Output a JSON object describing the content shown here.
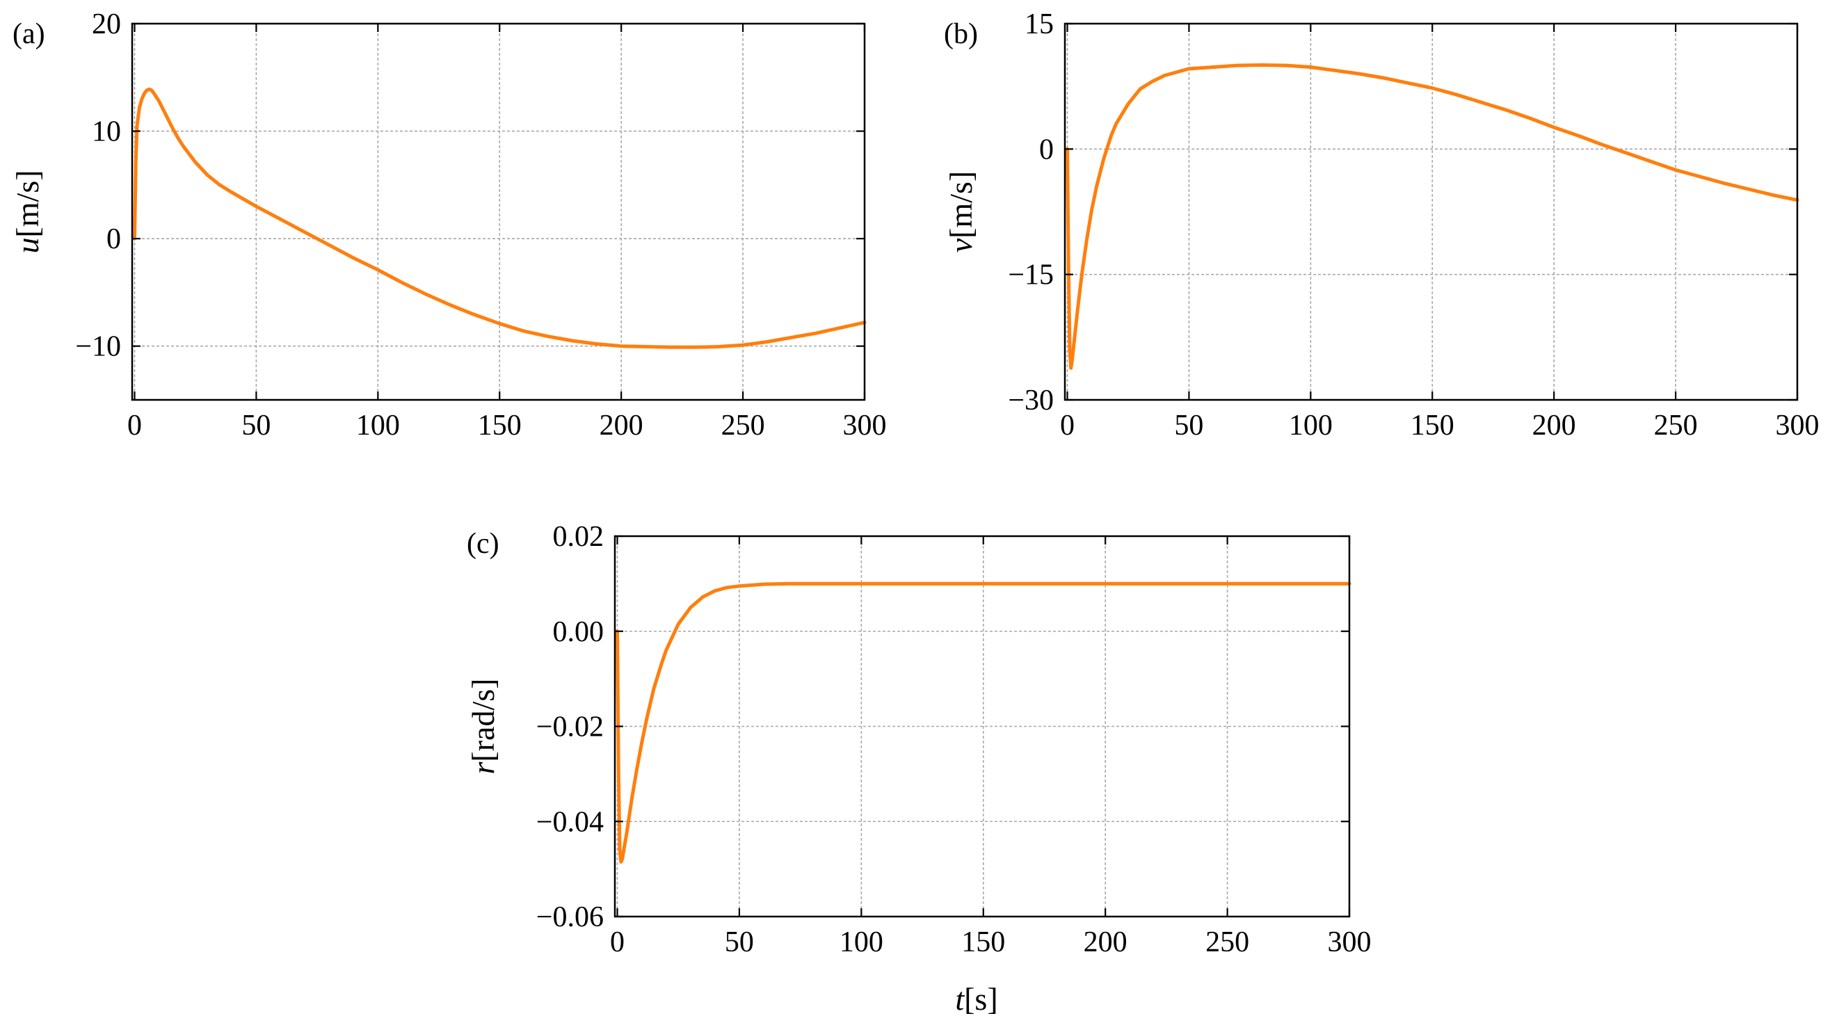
{
  "figure": {
    "xlabel_var": "t",
    "xlabel_unit": "[s]",
    "line_color": "#ff7f0e"
  },
  "chart_data": [
    {
      "type": "line",
      "panel_label": "(a)",
      "ylabel_var": "u",
      "ylabel_unit": "[m/s]",
      "xlim": [
        -1,
        300
      ],
      "ylim": [
        -15,
        20
      ],
      "xticks": [
        0,
        50,
        100,
        150,
        200,
        250,
        300
      ],
      "xtick_labels": [
        "0",
        "50",
        "100",
        "150",
        "200",
        "250",
        "300"
      ],
      "yticks": [
        -10,
        0,
        10,
        20
      ],
      "ytick_labels": [
        "−10",
        "0",
        "10",
        "20"
      ],
      "grid": true,
      "series": [
        {
          "x": [
            0,
            0.5,
            1,
            2,
            3,
            4,
            5,
            6,
            7,
            8,
            10,
            12,
            14,
            16,
            18,
            20,
            25,
            30,
            35,
            40,
            50,
            60,
            70,
            80,
            90,
            100,
            110,
            120,
            130,
            140,
            150,
            160,
            170,
            180,
            190,
            200,
            210,
            220,
            230,
            235,
            240,
            250,
            260,
            270,
            280,
            290,
            300
          ],
          "y": [
            0,
            7,
            10.5,
            12.2,
            13,
            13.5,
            13.8,
            13.9,
            13.8,
            13.5,
            12.8,
            11.9,
            11,
            10.1,
            9.3,
            8.6,
            7.1,
            5.9,
            5,
            4.3,
            3,
            1.8,
            0.6,
            -0.6,
            -1.8,
            -2.9,
            -4.1,
            -5.2,
            -6.2,
            -7.1,
            -7.9,
            -8.6,
            -9.1,
            -9.5,
            -9.8,
            -10,
            -10.05,
            -10.1,
            -10.1,
            -10.08,
            -10.05,
            -9.9,
            -9.6,
            -9.2,
            -8.8,
            -8.3,
            -7.8
          ]
        }
      ]
    },
    {
      "type": "line",
      "panel_label": "(b)",
      "ylabel_var": "v",
      "ylabel_unit": "[m/s]",
      "xlim": [
        -1,
        300
      ],
      "ylim": [
        -30,
        15
      ],
      "xticks": [
        0,
        50,
        100,
        150,
        200,
        250,
        300
      ],
      "xtick_labels": [
        "0",
        "50",
        "100",
        "150",
        "200",
        "250",
        "300"
      ],
      "yticks": [
        -30,
        -15,
        0,
        15
      ],
      "ytick_labels": [
        "−30",
        "−15",
        "0",
        "15"
      ],
      "grid": true,
      "series": [
        {
          "x": [
            0,
            0.5,
            1,
            1.5,
            2,
            3,
            4,
            5,
            6,
            8,
            10,
            12,
            15,
            18,
            20,
            25,
            30,
            35,
            40,
            50,
            60,
            70,
            80,
            90,
            100,
            110,
            120,
            130,
            140,
            150,
            160,
            170,
            180,
            190,
            200,
            210,
            220,
            230,
            240,
            250,
            260,
            270,
            280,
            290,
            300
          ],
          "y": [
            0,
            -14,
            -24,
            -26.2,
            -25.2,
            -22.5,
            -19.8,
            -17.3,
            -14.9,
            -10.8,
            -7.3,
            -4.5,
            -1.1,
            1.6,
            3,
            5.4,
            7.2,
            8.1,
            8.8,
            9.6,
            9.8,
            10,
            10.05,
            10,
            9.8,
            9.4,
            9,
            8.5,
            7.9,
            7.3,
            6.5,
            5.6,
            4.7,
            3.7,
            2.6,
            1.6,
            0.5,
            -0.5,
            -1.5,
            -2.5,
            -3.3,
            -4.1,
            -4.8,
            -5.5,
            -6.1
          ]
        }
      ]
    },
    {
      "type": "line",
      "panel_label": "(c)",
      "ylabel_var": "r",
      "ylabel_unit": "[rad/s]",
      "xlim": [
        -1,
        300
      ],
      "ylim": [
        -0.06,
        0.02
      ],
      "xticks": [
        0,
        50,
        100,
        150,
        200,
        250,
        300
      ],
      "xtick_labels": [
        "0",
        "50",
        "100",
        "150",
        "200",
        "250",
        "300"
      ],
      "yticks": [
        -0.06,
        -0.04,
        -0.02,
        0,
        0.02
      ],
      "ytick_labels": [
        "−0.06",
        "−0.04",
        "−0.02",
        "0.00",
        "0.02"
      ],
      "grid": true,
      "series": [
        {
          "x": [
            0,
            0.5,
            1,
            1.5,
            2,
            3,
            4,
            5,
            6,
            8,
            10,
            12,
            15,
            18,
            20,
            25,
            30,
            35,
            40,
            45,
            50,
            60,
            70,
            80,
            100,
            150,
            200,
            250,
            300
          ],
          "y": [
            0,
            -0.03,
            -0.046,
            -0.0485,
            -0.048,
            -0.045,
            -0.042,
            -0.0385,
            -0.035,
            -0.029,
            -0.0235,
            -0.0185,
            -0.012,
            -0.007,
            -0.004,
            0.0015,
            0.005,
            0.0072,
            0.0085,
            0.0092,
            0.0095,
            0.0099,
            0.01,
            0.01,
            0.01,
            0.01,
            0.01,
            0.01,
            0.01
          ]
        }
      ]
    }
  ]
}
